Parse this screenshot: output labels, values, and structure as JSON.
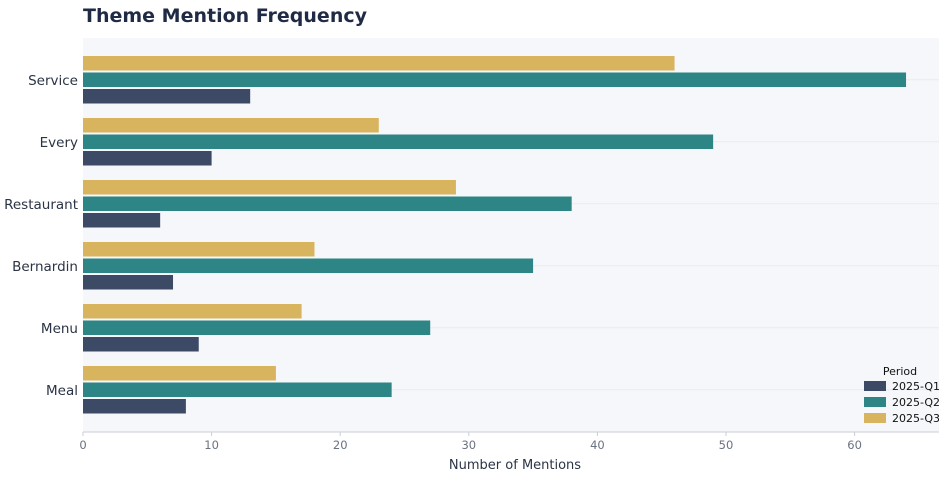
{
  "chart_data": {
    "type": "bar",
    "orientation": "horizontal",
    "title": "Theme Mention Frequency",
    "xlabel": "Number of Mentions",
    "ylabel": "",
    "categories": [
      "Service",
      "Every",
      "Restaurant",
      "Bernardin",
      "Menu",
      "Meal"
    ],
    "series": [
      {
        "name": "2025-Q1",
        "color": "#3c4a66",
        "values": [
          13,
          10,
          6,
          7,
          9,
          8
        ]
      },
      {
        "name": "2025-Q2",
        "color": "#2e8585",
        "values": [
          64,
          49,
          38,
          35,
          27,
          24
        ]
      },
      {
        "name": "2025-Q3",
        "color": "#d9b45e",
        "values": [
          46,
          23,
          29,
          18,
          17,
          15
        ]
      }
    ],
    "xlim": [
      0,
      66
    ],
    "xticks": [
      0,
      10,
      20,
      30,
      40,
      50,
      60
    ],
    "grid": true,
    "legend": {
      "title": "Period",
      "position": "bottom-right"
    },
    "plot_background": "#f5f7fa"
  }
}
